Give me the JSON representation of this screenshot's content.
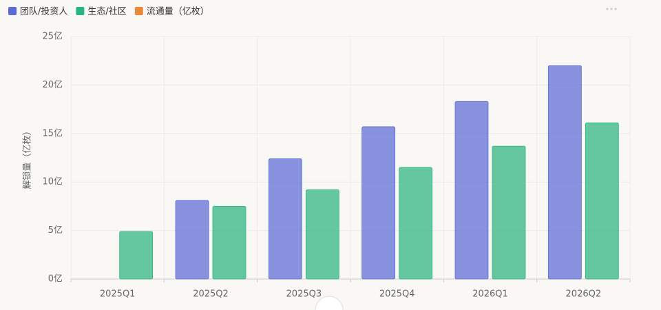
{
  "chart_data": {
    "type": "bar",
    "y_label": "解锁量（亿枚）",
    "categories": [
      "2025Q1",
      "2025Q2",
      "2025Q3",
      "2025Q4",
      "2026Q1",
      "2026Q2"
    ],
    "series": [
      {
        "name": "团队/投资人",
        "color": "#5b6bd6",
        "values": [
          0,
          8.1,
          12.4,
          15.7,
          18.3,
          22.0
        ]
      },
      {
        "name": "生态/社区",
        "color": "#2bb47f",
        "values": [
          4.9,
          7.5,
          9.2,
          11.5,
          13.7,
          16.1
        ]
      },
      {
        "name": "流通量（亿枚）",
        "color": "#e8883a",
        "values": [
          null,
          null,
          null,
          null,
          null,
          null
        ]
      }
    ],
    "ylim": [
      0,
      25
    ],
    "yticks": [
      {
        "value": 0,
        "label": "0亿"
      },
      {
        "value": 5,
        "label": "5亿"
      },
      {
        "value": 10,
        "label": "10亿"
      },
      {
        "value": 15,
        "label": "15亿"
      },
      {
        "value": 20,
        "label": "20亿"
      },
      {
        "value": 25,
        "label": "25亿"
      }
    ],
    "grid": true
  }
}
